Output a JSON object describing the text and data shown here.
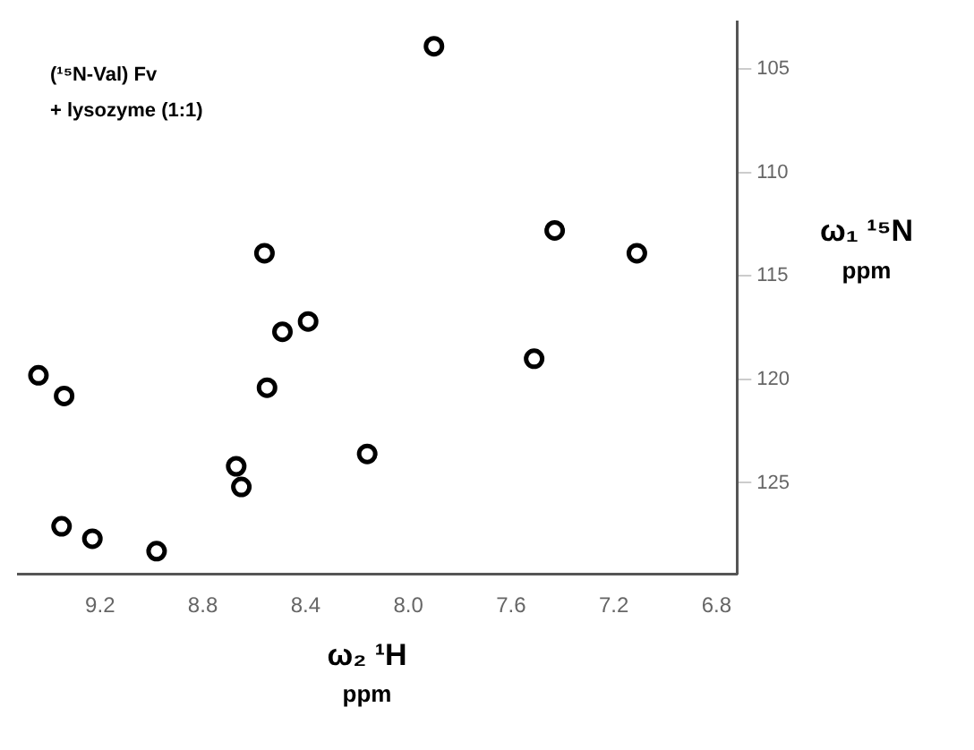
{
  "chart_data": {
    "type": "scatter",
    "xlabel": "ω₂ ¹H\nppm",
    "ylabel": "ω₁ ¹⁵N\nppm",
    "annotations": [
      "(¹⁵N-Val) Fv",
      "+ lysozyme (1:1)"
    ],
    "series": [
      {
        "color": "#000000",
        "x": [
          7.9,
          7.43,
          7.11,
          8.56,
          8.49,
          8.39,
          8.55,
          7.51,
          8.67,
          8.65,
          9.34,
          9.44,
          8.16,
          9.35,
          9.23,
          8.98
        ],
        "values": [
          103.9,
          112.8,
          113.9,
          113.9,
          117.7,
          117.2,
          120.4,
          119.0,
          124.2,
          125.2,
          120.8,
          119.8,
          123.6,
          127.1,
          127.7,
          128.3
        ]
      }
    ],
    "xlim": [
      9.52,
      6.72
    ],
    "ylim": [
      129.4,
      102.7
    ],
    "xticks": [
      9.2,
      8.8,
      8.4,
      {
        "value": 8,
        "label": "8.0"
      },
      7.6,
      7.2,
      6.8
    ],
    "yticks": [
      105,
      110,
      115,
      120,
      125
    ],
    "marker": "circle",
    "grid": false,
    "legend": false
  }
}
